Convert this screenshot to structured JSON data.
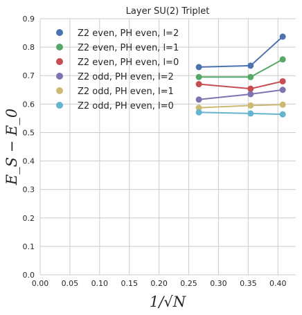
{
  "chart_data": {
    "type": "line",
    "title": "Layer SU(2) Triplet",
    "xlabel": "1/√N",
    "ylabel": "E_S − E_0",
    "xlim": [
      0.0,
      0.43
    ],
    "ylim": [
      0.0,
      0.9
    ],
    "xticks": [
      "0.00",
      "0.05",
      "0.10",
      "0.15",
      "0.20",
      "0.25",
      "0.30",
      "0.35",
      "0.40"
    ],
    "yticks": [
      "0.0",
      "0.1",
      "0.2",
      "0.3",
      "0.4",
      "0.5",
      "0.6",
      "0.7",
      "0.8",
      "0.9"
    ],
    "grid": true,
    "legend_position": "top-left",
    "x": [
      0.267,
      0.354,
      0.408
    ],
    "series": [
      {
        "name": "Z2 even, PH even, l=2",
        "color": "#4c72b0",
        "values": [
          0.73,
          0.735,
          0.837
        ]
      },
      {
        "name": "Z2 even, PH even, l=1",
        "color": "#55a868",
        "values": [
          0.695,
          0.695,
          0.757
        ]
      },
      {
        "name": "Z2 even, PH even, l=0",
        "color": "#c44e52",
        "values": [
          0.67,
          0.654,
          0.68
        ]
      },
      {
        "name": "Z2 odd, PH even, l=2",
        "color": "#8172b2",
        "values": [
          0.616,
          0.635,
          0.65
        ]
      },
      {
        "name": "Z2 odd, PH even, l=1",
        "color": "#ccb974",
        "values": [
          0.587,
          0.595,
          0.598
        ]
      },
      {
        "name": "Z2 odd, PH even, l=0",
        "color": "#64b5cd",
        "values": [
          0.571,
          0.567,
          0.564
        ]
      }
    ]
  }
}
